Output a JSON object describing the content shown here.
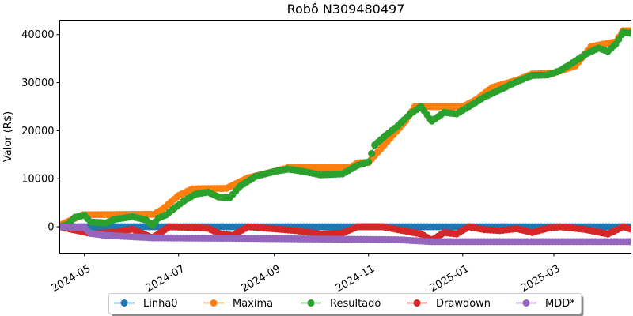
{
  "chart_data": {
    "type": "line",
    "title": "Robô N309480497",
    "xlabel": "",
    "ylabel": "Valor (R$)",
    "x_range": [
      "2024-04-15",
      "2025-04-20"
    ],
    "ylim": [
      -5500,
      43000
    ],
    "y_ticks": [
      0,
      10000,
      20000,
      30000,
      40000
    ],
    "y_tick_labels": [
      "0",
      "10000",
      "20000",
      "30000",
      "40000"
    ],
    "x_ticks": [
      "2024-05-01",
      "2024-07-01",
      "2024-09-01",
      "2024-11-01",
      "2025-01-01",
      "2025-03-01"
    ],
    "x_tick_labels": [
      "2024-05",
      "2024-07",
      "2024-09",
      "2024-11",
      "2025-01",
      "2025-03"
    ],
    "x_tick_rotation": 30,
    "grid": false,
    "legend_position": "bottom",
    "marker": "circle",
    "series": [
      {
        "name": "Linha0",
        "color": "#1f77b4",
        "points": [
          [
            "2024-04-15",
            0
          ],
          [
            "2025-04-20",
            0
          ]
        ]
      },
      {
        "name": "Maxima",
        "color": "#ff7f0e",
        "points": [
          [
            "2024-04-15",
            300
          ],
          [
            "2024-04-30",
            2500
          ],
          [
            "2024-06-15",
            2600
          ],
          [
            "2024-06-20",
            3500
          ],
          [
            "2024-07-01",
            6500
          ],
          [
            "2024-07-10",
            7900
          ],
          [
            "2024-08-01",
            8000
          ],
          [
            "2024-08-15",
            10200
          ],
          [
            "2024-09-01",
            11500
          ],
          [
            "2024-09-10",
            12300
          ],
          [
            "2024-10-20",
            12300
          ],
          [
            "2024-10-25",
            13300
          ],
          [
            "2024-11-01",
            13400
          ],
          [
            "2024-11-25",
            22000
          ],
          [
            "2024-12-01",
            25000
          ],
          [
            "2025-01-01",
            25000
          ],
          [
            "2025-01-10",
            26500
          ],
          [
            "2025-01-20",
            29000
          ],
          [
            "2025-02-05",
            30500
          ],
          [
            "2025-02-15",
            31800
          ],
          [
            "2025-03-01",
            32000
          ],
          [
            "2025-03-15",
            33500
          ],
          [
            "2025-03-25",
            37500
          ],
          [
            "2025-04-10",
            38500
          ],
          [
            "2025-04-15",
            40800
          ],
          [
            "2025-04-20",
            40800
          ]
        ]
      },
      {
        "name": "Resultado",
        "color": "#2ca02c",
        "points": [
          [
            "2024-04-15",
            0
          ],
          [
            "2024-04-20",
            500
          ],
          [
            "2024-04-25",
            2000
          ],
          [
            "2024-05-01",
            2400
          ],
          [
            "2024-05-05",
            1000
          ],
          [
            "2024-05-15",
            800
          ],
          [
            "2024-05-20",
            1500
          ],
          [
            "2024-06-01",
            2100
          ],
          [
            "2024-06-10",
            1400
          ],
          [
            "2024-06-14",
            300
          ],
          [
            "2024-06-18",
            1800
          ],
          [
            "2024-06-23",
            2500
          ],
          [
            "2024-06-28",
            3800
          ],
          [
            "2024-07-05",
            5500
          ],
          [
            "2024-07-12",
            6800
          ],
          [
            "2024-07-20",
            7200
          ],
          [
            "2024-07-27",
            6200
          ],
          [
            "2024-08-03",
            6000
          ],
          [
            "2024-08-10",
            8500
          ],
          [
            "2024-08-20",
            10500
          ],
          [
            "2024-09-01",
            11500
          ],
          [
            "2024-09-10",
            12000
          ],
          [
            "2024-09-20",
            11500
          ],
          [
            "2024-10-01",
            10800
          ],
          [
            "2024-10-15",
            11000
          ],
          [
            "2024-10-25",
            12800
          ],
          [
            "2024-11-01",
            13500
          ],
          [
            "2024-11-05",
            17000
          ],
          [
            "2024-11-12",
            19000
          ],
          [
            "2024-11-20",
            21000
          ],
          [
            "2024-11-28",
            23500
          ],
          [
            "2024-12-05",
            25000
          ],
          [
            "2024-12-12",
            22000
          ],
          [
            "2024-12-20",
            23800
          ],
          [
            "2024-12-28",
            23500
          ],
          [
            "2025-01-05",
            25000
          ],
          [
            "2025-01-15",
            27000
          ],
          [
            "2025-01-25",
            28500
          ],
          [
            "2025-02-05",
            30200
          ],
          [
            "2025-02-15",
            31500
          ],
          [
            "2025-02-25",
            31600
          ],
          [
            "2025-03-05",
            32500
          ],
          [
            "2025-03-15",
            34500
          ],
          [
            "2025-03-22",
            36000
          ],
          [
            "2025-03-30",
            37200
          ],
          [
            "2025-04-05",
            36500
          ],
          [
            "2025-04-10",
            38000
          ],
          [
            "2025-04-15",
            40500
          ],
          [
            "2025-04-20",
            40300
          ]
        ]
      },
      {
        "name": "Drawdown",
        "color": "#d62728",
        "points": [
          [
            "2024-04-15",
            0
          ],
          [
            "2024-05-05",
            -1400
          ],
          [
            "2024-05-20",
            -1200
          ],
          [
            "2024-06-01",
            -500
          ],
          [
            "2024-06-14",
            -2300
          ],
          [
            "2024-06-25",
            0
          ],
          [
            "2024-07-20",
            -300
          ],
          [
            "2024-07-28",
            -1500
          ],
          [
            "2024-08-05",
            -1800
          ],
          [
            "2024-08-15",
            0
          ],
          [
            "2024-09-15",
            -800
          ],
          [
            "2024-10-01",
            -1500
          ],
          [
            "2024-10-15",
            -1300
          ],
          [
            "2024-10-25",
            0
          ],
          [
            "2024-11-10",
            0
          ],
          [
            "2024-12-05",
            -1500
          ],
          [
            "2024-12-12",
            -2800
          ],
          [
            "2024-12-20",
            -1200
          ],
          [
            "2024-12-28",
            -1500
          ],
          [
            "2025-01-05",
            0
          ],
          [
            "2025-01-15",
            -600
          ],
          [
            "2025-01-25",
            -800
          ],
          [
            "2025-02-05",
            -400
          ],
          [
            "2025-02-15",
            -1200
          ],
          [
            "2025-02-25",
            -300
          ],
          [
            "2025-03-05",
            0
          ],
          [
            "2025-03-20",
            -500
          ],
          [
            "2025-04-05",
            -1500
          ],
          [
            "2025-04-15",
            0
          ],
          [
            "2025-04-20",
            -500
          ]
        ]
      },
      {
        "name": "MDD*",
        "color": "#9467bd",
        "points": [
          [
            "2024-04-15",
            0
          ],
          [
            "2024-05-01",
            -200
          ],
          [
            "2024-05-05",
            -1400
          ],
          [
            "2024-05-15",
            -1800
          ],
          [
            "2024-06-14",
            -2300
          ],
          [
            "2024-08-05",
            -2400
          ],
          [
            "2024-10-15",
            -2600
          ],
          [
            "2024-11-20",
            -2700
          ],
          [
            "2024-12-12",
            -3100
          ],
          [
            "2025-04-20",
            -3100
          ]
        ]
      }
    ]
  }
}
